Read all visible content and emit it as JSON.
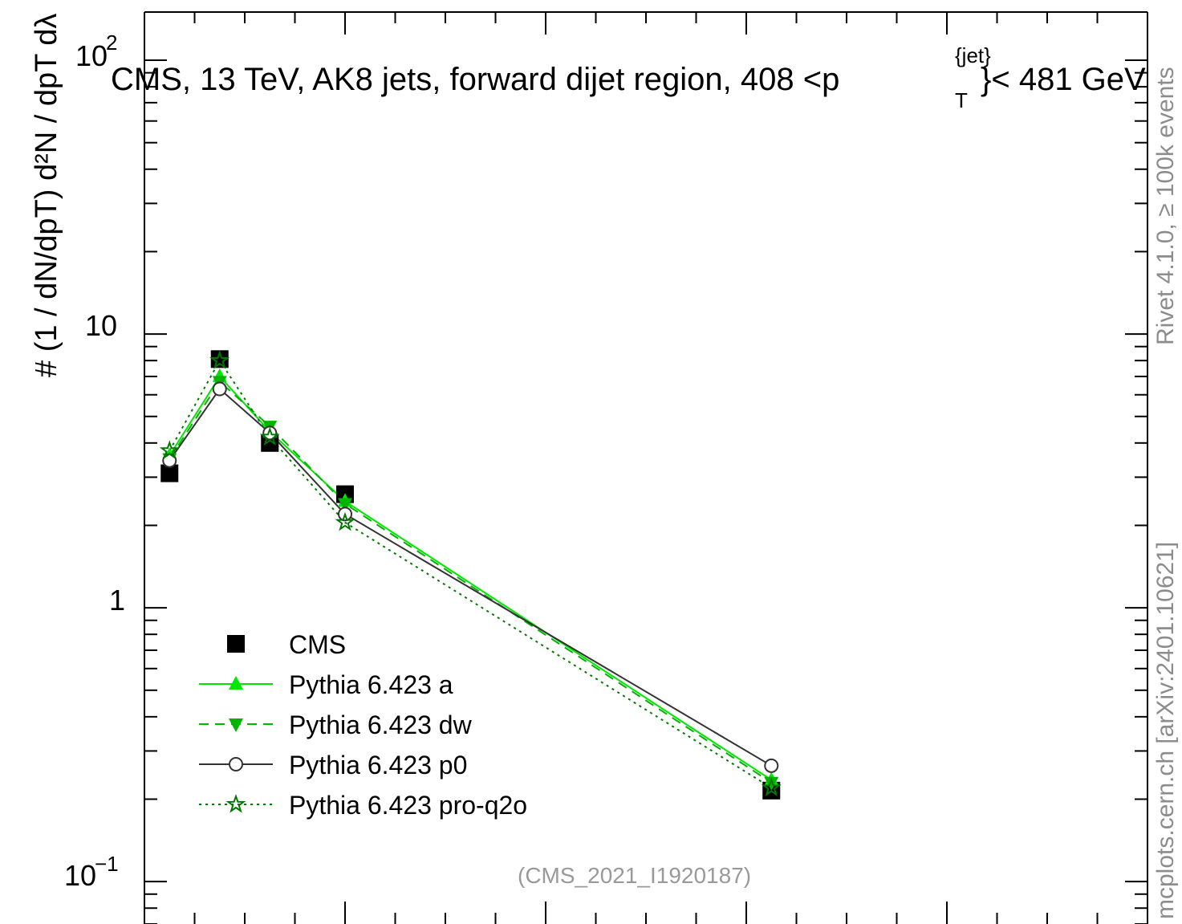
{
  "chart_data": {
    "type": "line",
    "title": "CMS, 13 TeV, AK8 jets, forward dijet region, 408 <p",
    "title_sup": "{jet}",
    "title_sub": "T",
    "title_tail": "}< 481 GeV",
    "ylabel": "# (1 / dN/dpT) d²N / dpT dλ",
    "yscale": "log",
    "ylim": [
      0.07,
      150
    ],
    "xlim": [
      0,
      1
    ],
    "y_tick_labels": {
      "hundred": "10",
      "hundred_exp": "2",
      "ten": "10",
      "one": "1",
      "tenth": "10",
      "tenth_exp": "−1"
    },
    "legend_position": "lower-left",
    "series": [
      {
        "name": "CMS",
        "color": "#000000",
        "marker": "square",
        "x": [
          0.025,
          0.075,
          0.125,
          0.2,
          0.625
        ],
        "y": [
          3.1,
          8.1,
          4.0,
          2.6,
          0.215
        ]
      },
      {
        "name": "Pythia 6.423 a",
        "color": "#00e600",
        "marker": "triangle-up",
        "line": "solid",
        "x": [
          0.025,
          0.075,
          0.125,
          0.2,
          0.625
        ],
        "y": [
          3.6,
          7.0,
          4.4,
          2.45,
          0.235
        ]
      },
      {
        "name": "Pythia 6.423 dw",
        "color": "#00b400",
        "marker": "triangle-down",
        "line": "dashed",
        "x": [
          0.025,
          0.075,
          0.125,
          0.2,
          0.625
        ],
        "y": [
          3.5,
          6.7,
          4.6,
          2.4,
          0.23
        ]
      },
      {
        "name": "Pythia 6.423 p0",
        "color": "#333333",
        "marker": "circle-open",
        "line": "solid",
        "x": [
          0.025,
          0.075,
          0.125,
          0.2,
          0.625
        ],
        "y": [
          3.45,
          6.3,
          4.35,
          2.2,
          0.265
        ]
      },
      {
        "name": "Pythia 6.423 pro-q2o",
        "color": "#007800",
        "marker": "star-open",
        "line": "dotted",
        "x": [
          0.025,
          0.075,
          0.125,
          0.2,
          0.625
        ],
        "y": [
          3.75,
          8.0,
          4.2,
          2.05,
          0.22
        ]
      }
    ]
  },
  "side_label": "Rivet 4.1.0, ≥ 100k events",
  "side_label2": "mcplots.cern.ch [arXiv:2401.10621]",
  "analysis_label": "(CMS_2021_I1920187)"
}
